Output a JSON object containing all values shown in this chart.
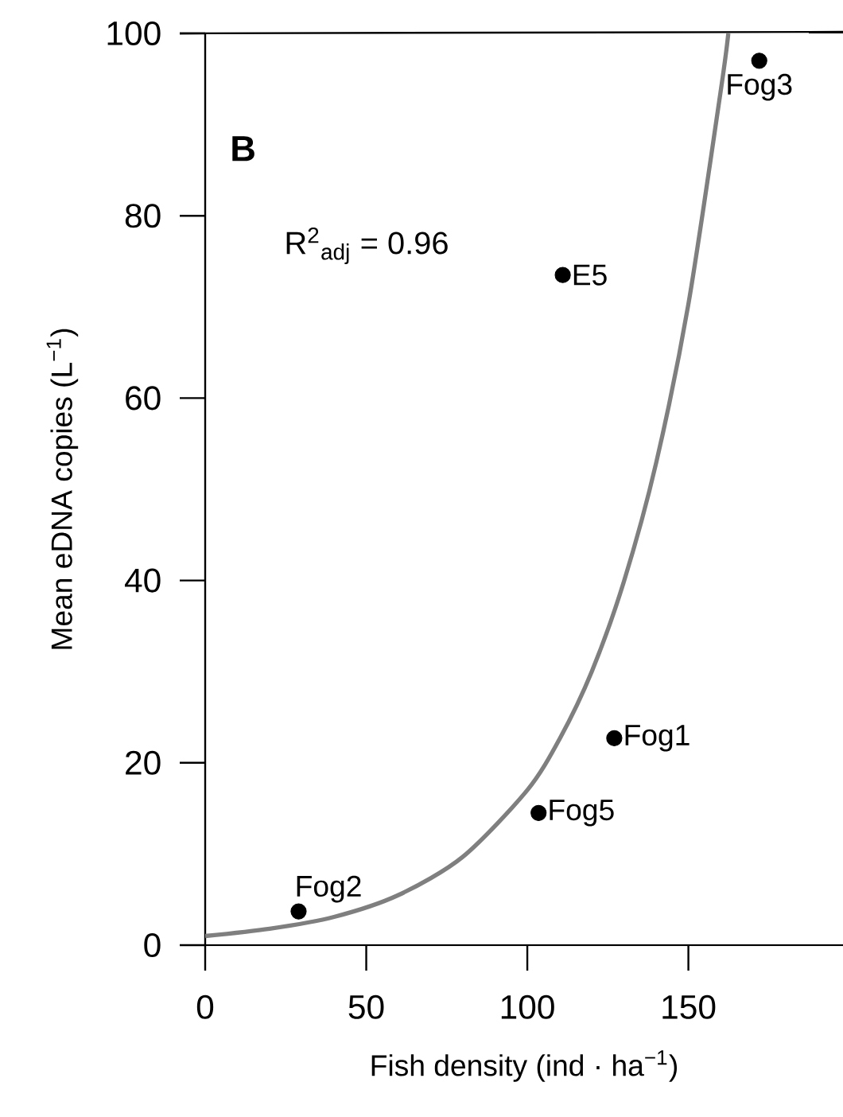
{
  "chart_data": {
    "type": "scatter",
    "xlabel": "Fish density (ind · ha$^{−1}$)",
    "ylabel": "Mean eDNA copies (L$^{−1}$)",
    "xlim": [
      0,
      198
    ],
    "ylim": [
      0,
      100
    ],
    "xticks": [
      0,
      50,
      100,
      150
    ],
    "yticks": [
      0,
      20,
      40,
      60,
      80,
      100
    ],
    "grid": false,
    "marker": "circle",
    "series": [
      {
        "color": "#000000",
        "x": [
          172,
          111,
          127,
          103.5,
          29
        ],
        "values": [
          97,
          73.5,
          22.7,
          14.5,
          3.7
        ]
      },
      {
        "type": "line",
        "color": "#7f7f7f",
        "marker": "none",
        "line_style": "solid",
        "x": [
          0,
          20,
          40,
          60,
          80,
          100,
          110,
          120,
          130,
          140,
          150,
          160,
          162.4
        ],
        "values": [
          1.0,
          1.8,
          3.1,
          5.5,
          9.7,
          17.0,
          22.6,
          30.0,
          39.9,
          52.9,
          70.3,
          93.6,
          100
        ]
      }
    ],
    "annotations": [
      "B",
      "R$^{2}$$_{adj}$ = 0.96",
      {
        "text": "Fog3",
        "x": 172,
        "y": 97
      },
      {
        "text": "E5",
        "x": 111,
        "y": 73.5
      },
      {
        "text": "Fog1",
        "x": 127,
        "y": 22.7
      },
      {
        "text": "Fog5",
        "x": 103.5,
        "y": 14.5
      },
      {
        "text": "Fog2",
        "x": 29,
        "y": 3.7
      }
    ]
  }
}
